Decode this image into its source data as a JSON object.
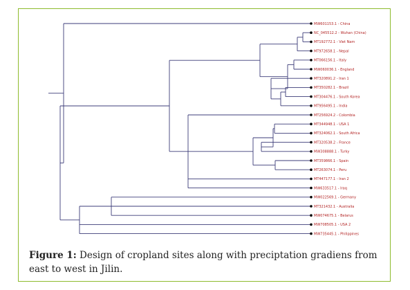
{
  "colors": {
    "frame": "#8dbb2c",
    "branch": "#3b3b78",
    "leaf_label": "#b22222",
    "node": "#000000"
  },
  "tree": {
    "leaves": [
      "MW601153.1 - China",
      "NC_045512.2 - Wuhan (China)",
      "MT192772.1 - Viet Nam",
      "MT972658.1 - Nepal",
      "MT066156.1 - Italy",
      "MW060036.1 - England",
      "MT320891.2 - Iran 1",
      "MT350282.1 - Brazil",
      "MT304476.1 - South Korea",
      "MT956495.1 - India",
      "MT256924.2 - Colombia",
      "MT344948.1 - USA 1",
      "MT324062.1 - South Africa",
      "MT320538.2 - France",
      "MW308888.1 - Turky",
      "MT359866.1 - Spain",
      "MT263074.1 - Peru",
      "MT447177.1 - Iran 2",
      "MW633517.1 - Iraq",
      "MW022569.1 - Germany",
      "MT321432.1 - Australia",
      "MW074675.1 - Belarus",
      "MW708505.1 - USA 2",
      "MW735445.1 - Philippines"
    ]
  },
  "caption": {
    "label": "Figure 1:",
    "text": " Design of cropland sites along with preciptation gradiens from east to west in Jilin."
  }
}
